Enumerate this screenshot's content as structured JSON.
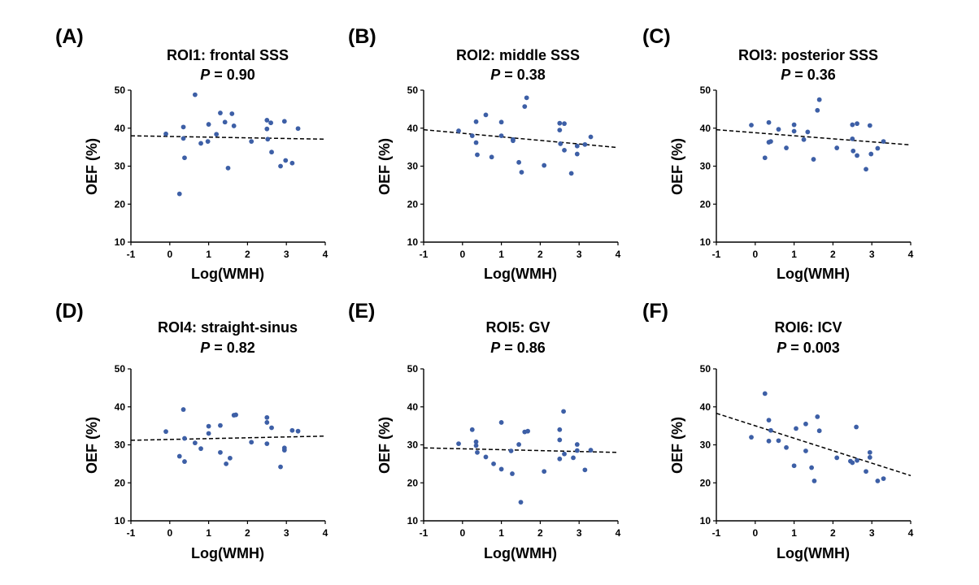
{
  "figure": {
    "point_color": "#3d5fa6",
    "trend_color": "#000000"
  },
  "chart_data": [
    {
      "type": "scatter",
      "panel_label": "(A)",
      "title": "ROI1: frontal SSS",
      "p_label": "P",
      "p_value": "= 0.90",
      "xlabel": "Log(WMH)",
      "ylabel": "OEF (%)",
      "xlim": [
        -1,
        4
      ],
      "ylim": [
        10,
        50
      ],
      "xticks": [
        -1,
        0,
        1,
        2,
        3,
        4
      ],
      "yticks": [
        10,
        20,
        30,
        40,
        50
      ],
      "points": [
        [
          -0.1,
          38.5
        ],
        [
          0.25,
          22.7
        ],
        [
          0.35,
          40.3
        ],
        [
          0.35,
          37.3
        ],
        [
          0.38,
          32.2
        ],
        [
          0.65,
          48.8
        ],
        [
          0.8,
          36.0
        ],
        [
          0.98,
          36.5
        ],
        [
          1.0,
          41.0
        ],
        [
          1.2,
          38.4
        ],
        [
          1.3,
          44.0
        ],
        [
          1.42,
          41.6
        ],
        [
          1.5,
          29.5
        ],
        [
          1.6,
          43.8
        ],
        [
          1.65,
          40.6
        ],
        [
          2.1,
          36.5
        ],
        [
          2.5,
          42.1
        ],
        [
          2.5,
          39.8
        ],
        [
          2.52,
          37.1
        ],
        [
          2.6,
          41.4
        ],
        [
          2.62,
          33.7
        ],
        [
          2.85,
          30.0
        ],
        [
          2.95,
          41.8
        ],
        [
          2.98,
          31.5
        ],
        [
          3.15,
          30.8
        ],
        [
          3.3,
          39.9
        ]
      ],
      "trend": [
        [
          -1,
          38.0
        ],
        [
          4,
          37.1
        ]
      ]
    },
    {
      "type": "scatter",
      "panel_label": "(B)",
      "title": "ROI2: middle SSS",
      "p_label": "P",
      "p_value": "= 0.38",
      "xlabel": "Log(WMH)",
      "ylabel": "OEF (%)",
      "xlim": [
        -1,
        4
      ],
      "ylim": [
        10,
        50
      ],
      "xticks": [
        -1,
        0,
        1,
        2,
        3,
        4
      ],
      "yticks": [
        10,
        20,
        30,
        40,
        50
      ],
      "points": [
        [
          -0.1,
          39.3
        ],
        [
          0.25,
          38.0
        ],
        [
          0.35,
          41.7
        ],
        [
          0.35,
          36.2
        ],
        [
          0.38,
          33.0
        ],
        [
          0.6,
          43.5
        ],
        [
          0.75,
          32.4
        ],
        [
          1.0,
          41.6
        ],
        [
          1.0,
          38.0
        ],
        [
          1.3,
          37.0
        ],
        [
          1.3,
          36.7
        ],
        [
          1.45,
          31.0
        ],
        [
          1.52,
          28.4
        ],
        [
          1.6,
          45.7
        ],
        [
          1.65,
          48.0
        ],
        [
          2.1,
          30.2
        ],
        [
          2.5,
          41.3
        ],
        [
          2.5,
          39.5
        ],
        [
          2.52,
          35.9
        ],
        [
          2.62,
          41.2
        ],
        [
          2.62,
          34.2
        ],
        [
          2.8,
          28.1
        ],
        [
          2.95,
          35.3
        ],
        [
          2.95,
          33.2
        ],
        [
          3.15,
          35.7
        ],
        [
          3.3,
          37.7
        ]
      ],
      "trend": [
        [
          -1,
          39.6
        ],
        [
          4,
          34.9
        ]
      ]
    },
    {
      "type": "scatter",
      "panel_label": "(C)",
      "title": "ROI3: posterior SSS",
      "p_label": "P",
      "p_value": "= 0.36",
      "xlabel": "Log(WMH)",
      "ylabel": "OEF (%)",
      "xlim": [
        -1,
        4
      ],
      "ylim": [
        10,
        50
      ],
      "xticks": [
        -1,
        0,
        1,
        2,
        3,
        4
      ],
      "yticks": [
        10,
        20,
        30,
        40,
        50
      ],
      "points": [
        [
          -0.1,
          40.8
        ],
        [
          0.25,
          32.2
        ],
        [
          0.35,
          41.5
        ],
        [
          0.35,
          36.3
        ],
        [
          0.4,
          36.5
        ],
        [
          0.6,
          39.7
        ],
        [
          0.8,
          34.8
        ],
        [
          1.0,
          40.9
        ],
        [
          1.0,
          39.2
        ],
        [
          1.25,
          37.0
        ],
        [
          1.35,
          39.0
        ],
        [
          1.5,
          31.8
        ],
        [
          1.6,
          44.7
        ],
        [
          1.65,
          47.5
        ],
        [
          2.1,
          34.8
        ],
        [
          2.5,
          40.9
        ],
        [
          2.5,
          37.2
        ],
        [
          2.52,
          34.0
        ],
        [
          2.62,
          41.2
        ],
        [
          2.62,
          32.8
        ],
        [
          2.85,
          29.2
        ],
        [
          2.95,
          40.7
        ],
        [
          2.98,
          33.2
        ],
        [
          3.15,
          34.7
        ],
        [
          3.3,
          36.5
        ]
      ],
      "trend": [
        [
          -1,
          39.6
        ],
        [
          4,
          35.6
        ]
      ]
    },
    {
      "type": "scatter",
      "panel_label": "(D)",
      "title": "ROI4: straight-sinus",
      "p_label": "P",
      "p_value": "= 0.82",
      "xlabel": "Log(WMH)",
      "ylabel": "OEF (%)",
      "xlim": [
        -1,
        4
      ],
      "ylim": [
        10,
        50
      ],
      "xticks": [
        -1,
        0,
        1,
        2,
        3,
        4
      ],
      "yticks": [
        10,
        20,
        30,
        40,
        50
      ],
      "points": [
        [
          -0.1,
          33.5
        ],
        [
          0.25,
          27.0
        ],
        [
          0.35,
          39.3
        ],
        [
          0.38,
          31.7
        ],
        [
          0.38,
          25.6
        ],
        [
          0.65,
          30.5
        ],
        [
          0.8,
          29.0
        ],
        [
          1.0,
          34.9
        ],
        [
          1.0,
          33.0
        ],
        [
          1.3,
          35.1
        ],
        [
          1.3,
          28.0
        ],
        [
          1.45,
          25.0
        ],
        [
          1.55,
          26.5
        ],
        [
          1.65,
          37.8
        ],
        [
          1.7,
          37.9
        ],
        [
          2.1,
          30.7
        ],
        [
          2.5,
          37.2
        ],
        [
          2.5,
          35.9
        ],
        [
          2.5,
          30.3
        ],
        [
          2.62,
          34.5
        ],
        [
          2.85,
          24.2
        ],
        [
          2.95,
          29.2
        ],
        [
          2.95,
          28.6
        ],
        [
          3.15,
          33.8
        ],
        [
          3.3,
          33.6
        ]
      ],
      "trend": [
        [
          -1,
          31.2
        ],
        [
          4,
          32.3
        ]
      ]
    },
    {
      "type": "scatter",
      "panel_label": "(E)",
      "title": "ROI5: GV",
      "p_label": "P",
      "p_value": "= 0.86",
      "xlabel": "Log(WMH)",
      "ylabel": "OEF (%)",
      "xlim": [
        -1,
        4
      ],
      "ylim": [
        10,
        50
      ],
      "xticks": [
        -1,
        0,
        1,
        2,
        3,
        4
      ],
      "yticks": [
        10,
        20,
        30,
        40,
        50
      ],
      "points": [
        [
          -0.1,
          30.3
        ],
        [
          0.25,
          34.0
        ],
        [
          0.35,
          30.8
        ],
        [
          0.35,
          29.8
        ],
        [
          0.38,
          28.0
        ],
        [
          0.6,
          26.8
        ],
        [
          0.8,
          25.0
        ],
        [
          1.0,
          35.9
        ],
        [
          1.0,
          23.6
        ],
        [
          1.25,
          28.4
        ],
        [
          1.28,
          22.4
        ],
        [
          1.45,
          30.1
        ],
        [
          1.5,
          14.9
        ],
        [
          1.6,
          33.4
        ],
        [
          1.68,
          33.6
        ],
        [
          2.1,
          23.0
        ],
        [
          2.5,
          34.0
        ],
        [
          2.5,
          31.3
        ],
        [
          2.5,
          26.3
        ],
        [
          2.6,
          38.8
        ],
        [
          2.62,
          27.6
        ],
        [
          2.85,
          26.6
        ],
        [
          2.95,
          30.1
        ],
        [
          2.95,
          28.5
        ],
        [
          3.15,
          23.4
        ],
        [
          3.3,
          28.6
        ]
      ],
      "trend": [
        [
          -1,
          29.2
        ],
        [
          4,
          28.0
        ]
      ]
    },
    {
      "type": "scatter",
      "panel_label": "(F)",
      "title": "ROI6: ICV",
      "p_label": "P",
      "p_value": "= 0.003",
      "xlabel": "Log(WMH)",
      "ylabel": "OEF (%)",
      "xlim": [
        -1,
        4
      ],
      "ylim": [
        10,
        50
      ],
      "xticks": [
        -1,
        0,
        1,
        2,
        3,
        4
      ],
      "yticks": [
        10,
        20,
        30,
        40,
        50
      ],
      "points": [
        [
          -0.1,
          32.0
        ],
        [
          0.25,
          43.5
        ],
        [
          0.35,
          36.5
        ],
        [
          0.35,
          31.0
        ],
        [
          0.4,
          33.8
        ],
        [
          0.6,
          31.1
        ],
        [
          0.8,
          29.3
        ],
        [
          1.0,
          24.5
        ],
        [
          1.05,
          34.3
        ],
        [
          1.3,
          35.5
        ],
        [
          1.3,
          28.4
        ],
        [
          1.45,
          24.0
        ],
        [
          1.52,
          20.5
        ],
        [
          1.6,
          37.4
        ],
        [
          1.65,
          33.7
        ],
        [
          2.1,
          26.6
        ],
        [
          2.45,
          25.7
        ],
        [
          2.5,
          25.3
        ],
        [
          2.6,
          34.7
        ],
        [
          2.62,
          25.9
        ],
        [
          2.85,
          23.0
        ],
        [
          2.95,
          28.0
        ],
        [
          2.95,
          26.7
        ],
        [
          3.15,
          20.5
        ],
        [
          3.3,
          21.1
        ]
      ],
      "trend": [
        [
          -1,
          38.3
        ],
        [
          4,
          21.9
        ]
      ]
    }
  ]
}
